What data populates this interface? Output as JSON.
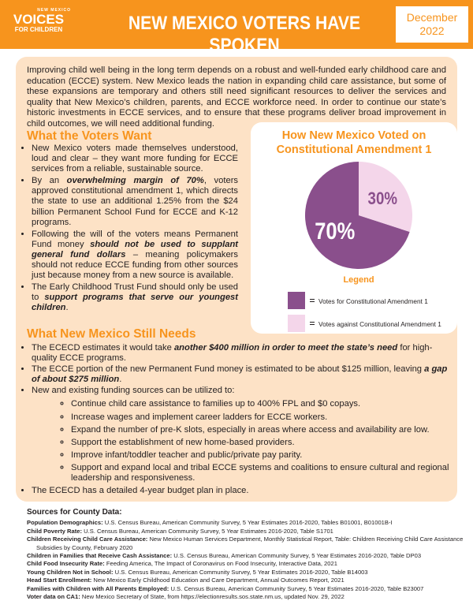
{
  "header": {
    "logo": {
      "top": "NEW MEXICO",
      "main": "VOICES",
      "bottom": "FOR CHILDREN"
    },
    "title": "NEW MEXICO VOTERS HAVE SPOKEN",
    "date": "December 2022"
  },
  "intro": "Improving child well being in the long term depends on a robust and well-funded early childhood care and education (ECCE) system. New Mexico leads the nation in expanding child care assistance, but some of these expansions are temporary and others still need significant resources to deliver the services and quality that New Mexico’s children, parents, and ECCE workforce need. In order to continue our state’s historic investments in ECCE services, and to ensure that these programs deliver broad improvement in child outcomes, we will need additional funding.",
  "voters_want": {
    "heading": "What the Voters Want",
    "items": [
      [
        "New Mexico voters made themselves understood, loud and clear – they want more funding for ECCE services from a reliable, sustainable source."
      ],
      [
        "By an ",
        "overwhelming margin of 70%",
        ", voters approved constitutional amendment 1, which directs the state to use an additional 1.25% from the $24 billion Permanent School Fund for ECCE and K-12 programs."
      ],
      [
        "Following the will of the voters means Permanent Fund money ",
        "should not be used to supplant general fund dollars",
        " – meaning policymakers should not reduce ECCE funding from other sources just because money from a new source is available."
      ],
      [
        "The Early Childhood Trust Fund should only be used to ",
        "support programs that serve our youngest children",
        "."
      ]
    ]
  },
  "chart_data": {
    "type": "pie",
    "title": "How New Mexico Voted on Constitutional Amendment 1",
    "legend_title": "Legend",
    "categories": [
      "Votes for Constitutional Amendment 1",
      "Votes against Constitutional Amendment 1"
    ],
    "values": [
      70,
      30
    ],
    "value_labels": [
      "70%",
      "30%"
    ],
    "colors": [
      "#8a4f8c",
      "#f4d6ea"
    ]
  },
  "still_needs": {
    "heading": "What New Mexico Still Needs",
    "items": [
      {
        "text": [
          "The ECECD estimates it would take ",
          "another $400 million in order to meet the state’s need",
          " for high-quality ECCE programs."
        ]
      },
      {
        "text": [
          "The ECCE portion of the new Permanent Fund money is estimated to be about $125 million, leaving ",
          "a gap of about $275 million",
          "."
        ]
      },
      {
        "text": [
          "New and existing funding sources can be utilized to:"
        ],
        "subitems": [
          "Continue child care assistance to families up to 400% FPL and $0 copays.",
          "Increase wages and implement career ladders for ECCE workers.",
          "Expand the number of pre-K slots, especially in areas where access and availability are low.",
          "Support the establishment of new home-based providers.",
          "Improve infant/toddler teacher and public/private pay parity.",
          "Support and expand local and tribal ECCE systems and coalitions to ensure cultural and regional leadership and responsiveness."
        ]
      },
      {
        "text": [
          "The ECECD has a detailed 4-year budget plan in place."
        ]
      }
    ]
  },
  "sources": {
    "title": "Sources for County Data:",
    "items": [
      {
        "label": "Population Demographics:",
        "text": "U.S. Census Bureau, American Community Survey, 5 Year Estimates 2016-2020, Tables B01001, B01001B-I"
      },
      {
        "label": "Child Poverty Rate:",
        "text": "U.S. Census Bureau, American Community Survey, 5 Year Estimates 2016-2020, Table S1701"
      },
      {
        "label": "Children Receiving Child Care Assistance:",
        "text": "New Mexico Human Services Department, Monthly Statistical Report, Table: Children Receiving Child Care Assistance Subsidies by County, February 2020"
      },
      {
        "label": "Children in Families that Receive Cash Assistance:",
        "text": "U.S. Census Bureau, American Community Survey, 5 Year Estimates 2016-2020, Table DP03"
      },
      {
        "label": "Child Food Insecurity Rate:",
        "text": "Feeding America, The Impact of Coronavirus on Food Insecurity, Interactive Data, 2021"
      },
      {
        "label": "Young Children Not in School:",
        "text": "U.S. Census Bureau, American Community Survey, 5 Year Estimates 2016-2020, Table B14003"
      },
      {
        "label": "Head Start Enrollment:",
        "text": "New Mexico Early Childhood Education and Care Department, Annual Outcomes Report, 2021"
      },
      {
        "label": "Families with Children with All Parents Employed:",
        "text": "U.S. Census Bureau, American Community Survey, 5 Year Estimates 2016-2020, Table B23007"
      },
      {
        "label": "Voter data on CA1:",
        "text": "New Mexico Secretary of State, from https://electionresults.sos.state.nm.us, updated Nov. 29, 2022"
      }
    ]
  }
}
